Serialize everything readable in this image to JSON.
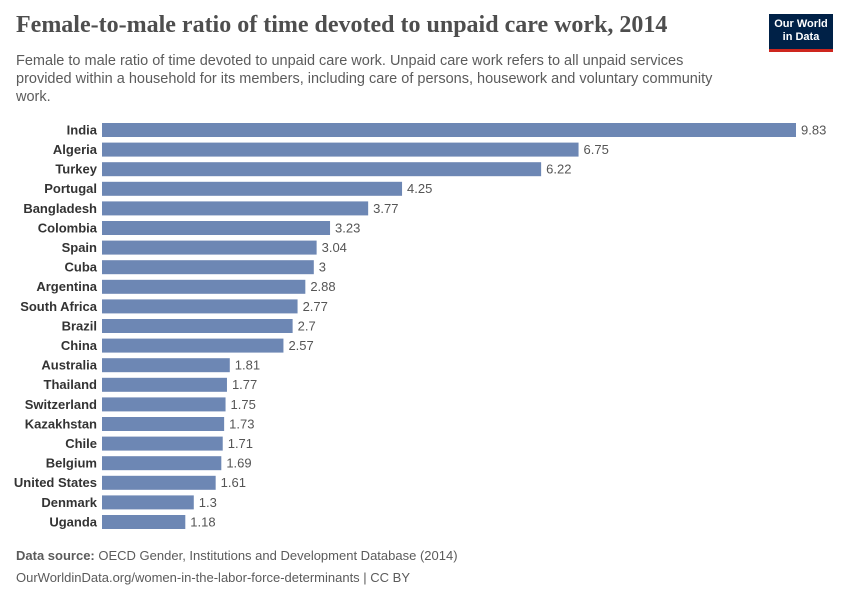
{
  "chart_data": {
    "type": "bar",
    "title": "Female-to-male ratio of time devoted to unpaid care work, 2014",
    "subtitle": "Female to male ratio of time devoted to unpaid care work. Unpaid care work refers to all unpaid services provided within a household for its members, including care of persons, housework and voluntary community work.",
    "categories": [
      "India",
      "Algeria",
      "Turkey",
      "Portugal",
      "Bangladesh",
      "Colombia",
      "Spain",
      "Cuba",
      "Argentina",
      "South Africa",
      "Brazil",
      "China",
      "Australia",
      "Thailand",
      "Switzerland",
      "Kazakhstan",
      "Chile",
      "Belgium",
      "United States",
      "Denmark",
      "Uganda"
    ],
    "values": [
      9.83,
      6.75,
      6.22,
      4.25,
      3.77,
      3.23,
      3.04,
      3,
      2.88,
      2.77,
      2.7,
      2.57,
      1.81,
      1.77,
      1.75,
      1.73,
      1.71,
      1.69,
      1.61,
      1.3,
      1.18
    ],
    "color": "#6d87b4",
    "source_label": "Data source:",
    "source": "OECD Gender, Institutions and Development Database (2014)",
    "footer": "OurWorldinData.org/women-in-the-labor-force-determinants | CC BY",
    "logo": {
      "line1": "Our World",
      "line2": "in Data"
    }
  }
}
